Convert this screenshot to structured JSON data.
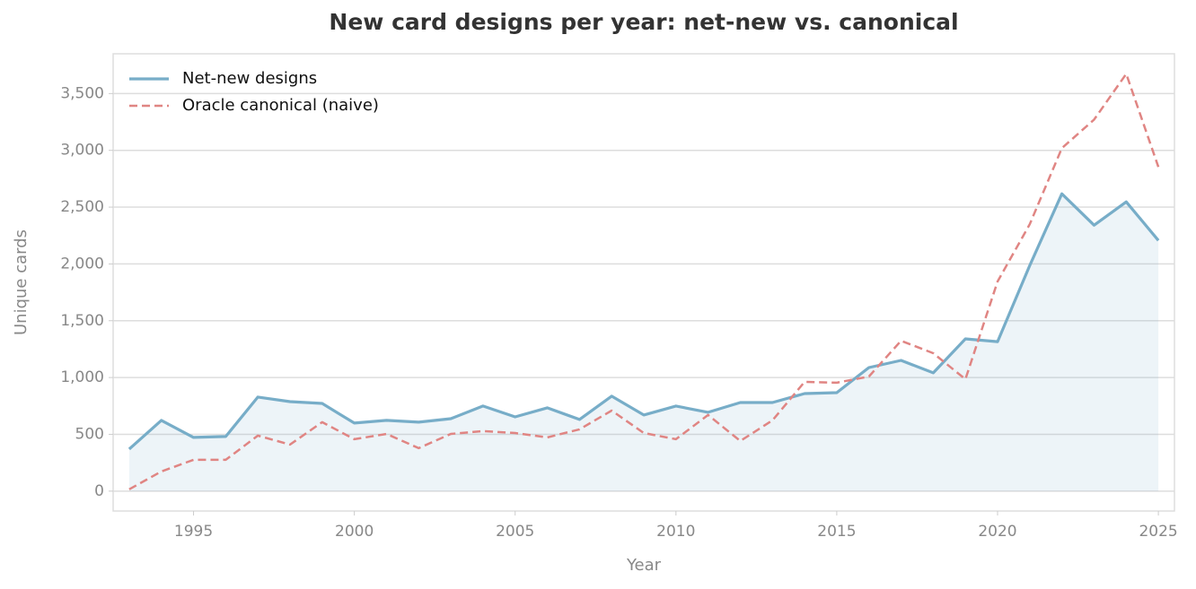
{
  "chart_data": {
    "type": "line",
    "title": "New card designs per year: net-new vs. canonical",
    "x_label": "Year",
    "y_label": "Unique cards",
    "x": [
      1993,
      1994,
      1995,
      1996,
      1997,
      1998,
      1999,
      2000,
      2001,
      2002,
      2003,
      2004,
      2005,
      2006,
      2007,
      2008,
      2009,
      2010,
      2011,
      2012,
      2013,
      2014,
      2015,
      2016,
      2017,
      2018,
      2019,
      2020,
      2021,
      2022,
      2023,
      2024,
      2025
    ],
    "series": [
      {
        "name": "Net-new designs",
        "color": "#77adc8",
        "dash": false,
        "fill": true,
        "values": [
          370,
          623,
          473,
          481,
          828,
          788,
          772,
          599,
          623,
          607,
          638,
          749,
          654,
          733,
          631,
          836,
          670,
          749,
          694,
          780,
          780,
          859,
          867,
          1088,
          1151,
          1041,
          1340,
          1316,
          1986,
          2617,
          2341,
          2546,
          2207
        ]
      },
      {
        "name": "Oracle canonical (naive)",
        "color": "#e08583",
        "dash": true,
        "fill": false,
        "values": [
          16,
          173,
          276,
          276,
          489,
          410,
          607,
          457,
          504,
          378,
          504,
          528,
          512,
          473,
          544,
          709,
          512,
          457,
          670,
          441,
          623,
          962,
          954,
          1009,
          1324,
          1214,
          985,
          1845,
          2349,
          3019,
          3271,
          3673,
          2854
        ]
      }
    ],
    "xlim": [
      1992.5,
      2025.5
    ],
    "xticks": [
      1995,
      2000,
      2005,
      2010,
      2015,
      2020,
      2025
    ],
    "ylim": [
      -175,
      3850
    ],
    "yticks": [
      0,
      500,
      {
        "value": 1000,
        "label": "1,000"
      },
      {
        "value": 1500,
        "label": "1,500"
      },
      {
        "value": 2000,
        "label": "2,000"
      },
      {
        "value": 2500,
        "label": "2,500"
      },
      {
        "value": 3000,
        "label": "3,000"
      },
      {
        "value": 3500,
        "label": "3,500"
      }
    ],
    "grid": true,
    "legend": "upper-left"
  }
}
